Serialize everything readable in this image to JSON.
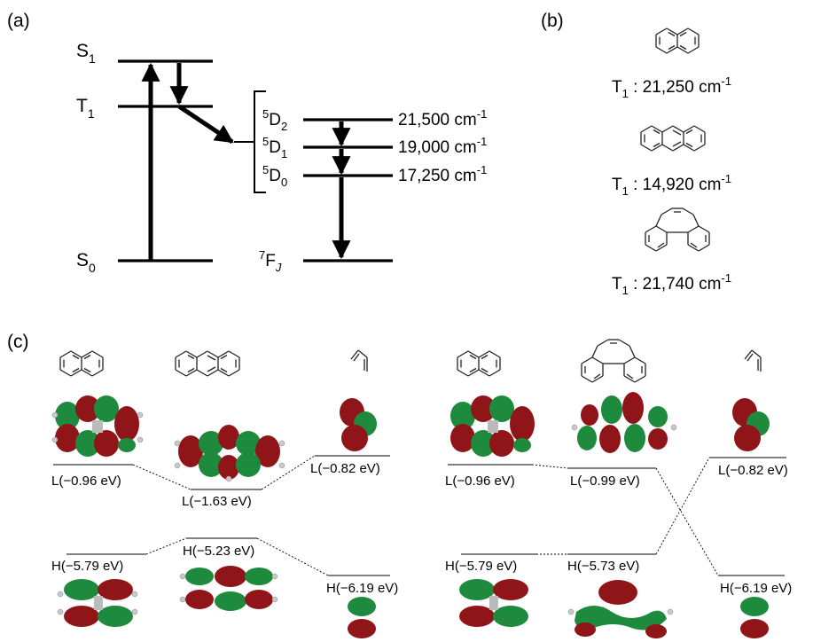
{
  "panels": {
    "a": "(a)",
    "b": "(b)",
    "c": "(c)"
  },
  "panel_a": {
    "states": {
      "s1": "S",
      "s1_sub": "1",
      "t1": "T",
      "t1_sub": "1",
      "s0": "S",
      "s0_sub": "0"
    },
    "eu_levels": [
      {
        "sup": "5",
        "term": "D",
        "sub": "2",
        "energy": "21,500 cm",
        "unit_sup": "-1"
      },
      {
        "sup": "5",
        "term": "D",
        "sub": "1",
        "energy": "19,000 cm",
        "unit_sup": "-1"
      },
      {
        "sup": "5",
        "term": "D",
        "sub": "0",
        "energy": "17,250 cm",
        "unit_sup": "-1"
      }
    ],
    "ground": {
      "sup": "7",
      "term": "F",
      "sub": "J"
    }
  },
  "panel_b": {
    "entries": [
      {
        "molecule_icon": "naphthalene-icon",
        "state": "T",
        "sub": "1",
        "value": " : 21,250 cm",
        "unit_sup": "-1"
      },
      {
        "molecule_icon": "anthracene-icon",
        "state": "T",
        "sub": "1",
        "value": " : 14,920 cm",
        "unit_sup": "-1"
      },
      {
        "molecule_icon": "phenanthrene-icon",
        "state": "T",
        "sub": "1",
        "value": " : 21,740 cm",
        "unit_sup": "-1"
      }
    ]
  },
  "panel_c": {
    "left": {
      "lumo": [
        "L(−0.96 eV)",
        "L(−1.63 eV)",
        "L(−0.82 eV)"
      ],
      "homo": [
        "H(−5.79 eV)",
        "H(−5.23 eV)",
        "H(−6.19 eV)"
      ]
    },
    "right": {
      "lumo": [
        "L(−0.96 eV)",
        "L(−0.99 eV)",
        "L(−0.82 eV)"
      ],
      "homo": [
        "H(−5.79 eV)",
        "H(−5.73 eV)",
        "H(−6.19 eV)"
      ]
    }
  },
  "colors": {
    "orbital_positive": "#8f1518",
    "orbital_negative": "#1e8a3e"
  }
}
